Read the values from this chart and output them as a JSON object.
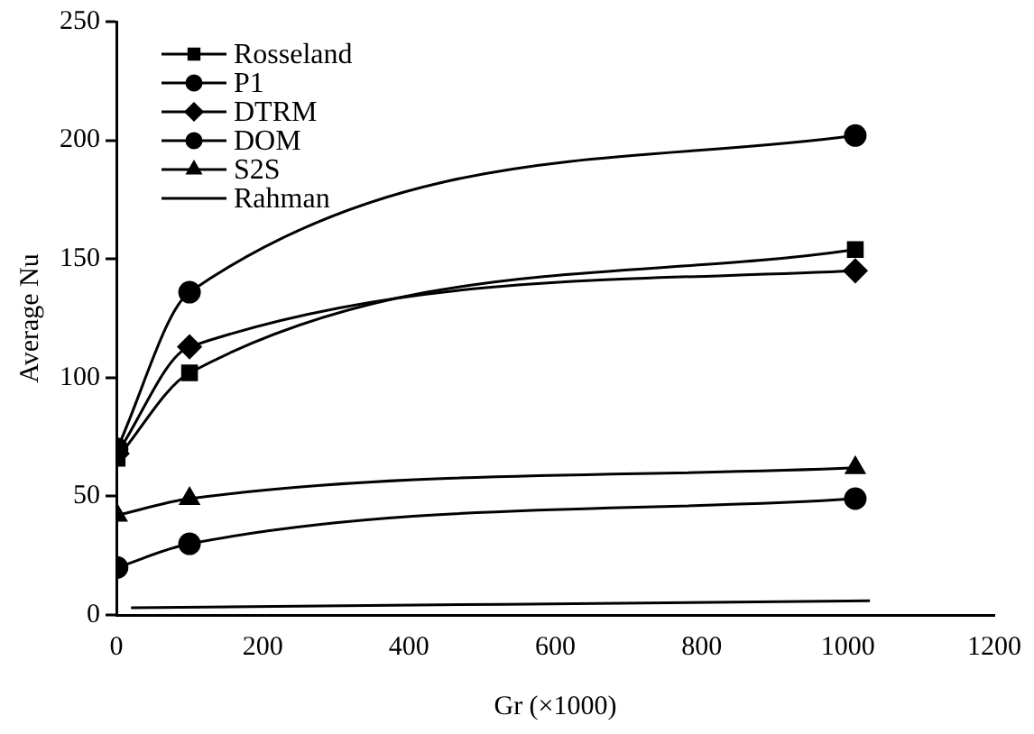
{
  "chart_data": {
    "type": "line",
    "xlabel": "Gr (×1000)",
    "ylabel": "Average Nu",
    "xlim": [
      0,
      1200
    ],
    "xticks": [
      0,
      200,
      400,
      600,
      800,
      1000,
      1200
    ],
    "ylim": [
      0,
      250
    ],
    "yticks": [
      0,
      50,
      100,
      150,
      200,
      250
    ],
    "grid": false,
    "legend": "top left",
    "line_style": "solid",
    "series": [
      {
        "name": "Rosseland",
        "color": "#000000",
        "marker": "square",
        "x": [
          1,
          100,
          1010
        ],
        "values": [
          66,
          102,
          154
        ]
      },
      {
        "name": "P1",
        "color": "#000000",
        "marker": "circle",
        "x": [
          1,
          100,
          1010
        ],
        "values": [
          70,
          136,
          202
        ]
      },
      {
        "name": "DTRM",
        "color": "#000000",
        "marker": "diamond",
        "x": [
          1,
          100,
          1010
        ],
        "values": [
          68,
          113,
          145
        ]
      },
      {
        "name": "DOM",
        "color": "#000000",
        "marker": "circle",
        "x": [
          1,
          100,
          1010
        ],
        "values": [
          20,
          30,
          49
        ]
      },
      {
        "name": "S2S",
        "color": "#000000",
        "marker": "triangle",
        "x": [
          1,
          100,
          1010
        ],
        "values": [
          42,
          49,
          62
        ]
      },
      {
        "name": "Rahman",
        "color": "#000000",
        "marker": "none",
        "x": [
          20,
          1030
        ],
        "values": [
          3,
          6
        ]
      }
    ]
  }
}
